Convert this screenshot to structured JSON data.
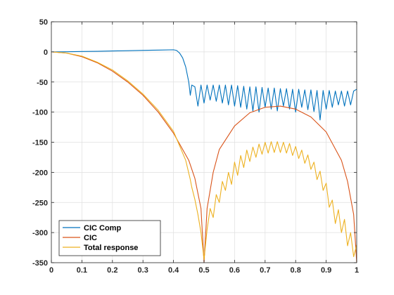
{
  "chart_data": {
    "type": "line",
    "title": "",
    "xlabel": "",
    "ylabel": "",
    "xlim": [
      0,
      1
    ],
    "ylim": [
      -350,
      50
    ],
    "xticks": [
      0,
      0.1,
      0.2,
      0.3,
      0.4,
      0.5,
      0.6,
      0.7,
      0.8,
      0.9,
      1
    ],
    "xtick_labels": [
      "0",
      "0.1",
      "0.2",
      "0.3",
      "0.4",
      "0.5",
      "0.6",
      "0.7",
      "0.8",
      "0.9",
      "1"
    ],
    "yticks": [
      50,
      0,
      -50,
      -100,
      -150,
      -200,
      -250,
      -300,
      -350
    ],
    "ytick_labels": [
      "50",
      "0",
      "-50",
      "-100",
      "-150",
      "-200",
      "-250",
      "-300",
      "-350"
    ],
    "grid": true,
    "legend": {
      "placement": "bottom-left"
    },
    "series": [
      {
        "name": "CIC Comp",
        "color": "#0072BD",
        "x": [
          0,
          0.05,
          0.1,
          0.15,
          0.2,
          0.25,
          0.3,
          0.35,
          0.4,
          0.41,
          0.42,
          0.43,
          0.44,
          0.45,
          0.455,
          0.46,
          0.47,
          0.48,
          0.49,
          0.5,
          0.51,
          0.52,
          0.53,
          0.54,
          0.55,
          0.56,
          0.57,
          0.58,
          0.59,
          0.6,
          0.61,
          0.62,
          0.63,
          0.64,
          0.65,
          0.66,
          0.67,
          0.68,
          0.69,
          0.7,
          0.71,
          0.72,
          0.73,
          0.74,
          0.75,
          0.76,
          0.77,
          0.78,
          0.79,
          0.8,
          0.81,
          0.82,
          0.83,
          0.84,
          0.85,
          0.86,
          0.87,
          0.88,
          0.89,
          0.9,
          0.91,
          0.92,
          0.93,
          0.94,
          0.95,
          0.96,
          0.97,
          0.98,
          0.99,
          1
        ],
        "y": [
          0,
          0.2,
          0.6,
          1.0,
          1.5,
          2.0,
          2.5,
          3.0,
          3.5,
          2.5,
          -2,
          -10,
          -25,
          -50,
          -72,
          -55,
          -58,
          -90,
          -55,
          -85,
          -55,
          -80,
          -55,
          -82,
          -55,
          -85,
          -55,
          -88,
          -55,
          -90,
          -56,
          -92,
          -57,
          -95,
          -58,
          -98,
          -58,
          -100,
          -59,
          -92,
          -60,
          -95,
          -60,
          -98,
          -61,
          -90,
          -61,
          -95,
          -62,
          -100,
          -62,
          -92,
          -63,
          -96,
          -63,
          -99,
          -64,
          -113,
          -64,
          -95,
          -64,
          -92,
          -65,
          -88,
          -65,
          -90,
          -65,
          -88,
          -65,
          -62
        ]
      },
      {
        "name": "CIC",
        "color": "#D95319",
        "x": [
          0,
          0.05,
          0.1,
          0.15,
          0.2,
          0.25,
          0.3,
          0.35,
          0.4,
          0.45,
          0.47,
          0.49,
          0.5,
          0.51,
          0.53,
          0.55,
          0.6,
          0.65,
          0.7,
          0.75,
          0.8,
          0.85,
          0.9,
          0.95,
          0.97,
          0.99,
          1
        ],
        "y": [
          0,
          -2,
          -8,
          -18,
          -32,
          -50,
          -72,
          -100,
          -135,
          -180,
          -210,
          -260,
          -350,
          -260,
          -200,
          -162,
          -123,
          -101,
          -92,
          -90,
          -95,
          -108,
          -133,
          -180,
          -215,
          -270,
          -350
        ]
      },
      {
        "name": "Total response",
        "color": "#EDB120",
        "x": [
          0,
          0.05,
          0.1,
          0.15,
          0.2,
          0.25,
          0.3,
          0.35,
          0.4,
          0.44,
          0.455,
          0.46,
          0.47,
          0.48,
          0.49,
          0.5,
          0.51,
          0.52,
          0.53,
          0.54,
          0.55,
          0.56,
          0.57,
          0.58,
          0.59,
          0.6,
          0.61,
          0.62,
          0.63,
          0.64,
          0.65,
          0.66,
          0.67,
          0.68,
          0.69,
          0.7,
          0.71,
          0.72,
          0.73,
          0.74,
          0.75,
          0.76,
          0.77,
          0.78,
          0.79,
          0.8,
          0.81,
          0.82,
          0.83,
          0.84,
          0.85,
          0.86,
          0.87,
          0.88,
          0.89,
          0.9,
          0.91,
          0.92,
          0.93,
          0.94,
          0.95,
          0.96,
          0.97,
          0.98,
          0.99,
          1
        ],
        "y": [
          0,
          -2,
          -7,
          -17,
          -30,
          -48,
          -70,
          -97,
          -132,
          -180,
          -212,
          -225,
          -245,
          -270,
          -300,
          -345,
          -295,
          -260,
          -275,
          -237,
          -250,
          -215,
          -230,
          -200,
          -220,
          -183,
          -205,
          -172,
          -192,
          -163,
          -182,
          -158,
          -175,
          -153,
          -170,
          -150,
          -168,
          -149,
          -167,
          -149,
          -167,
          -150,
          -168,
          -152,
          -172,
          -157,
          -177,
          -163,
          -185,
          -171,
          -195,
          -183,
          -212,
          -198,
          -230,
          -218,
          -258,
          -246,
          -285,
          -262,
          -300,
          -278,
          -322,
          -300,
          -340,
          -320
        ]
      }
    ]
  }
}
